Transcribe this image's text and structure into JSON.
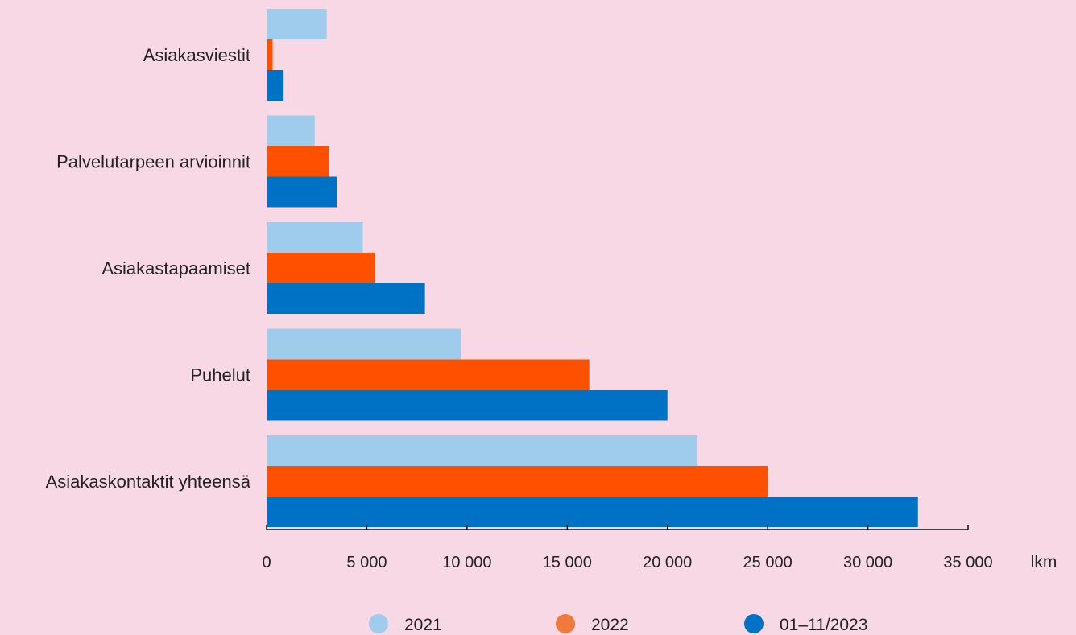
{
  "chart_data": {
    "type": "bar",
    "orientation": "horizontal",
    "title": "",
    "xlabel": "",
    "ylabel": "",
    "x_unit_label": "lkm",
    "categories": [
      "Asiakasviestit",
      "Palvelutarpeen arvioinnit",
      "Asiakastapaamiset",
      "Puhelut",
      "Asiakaskontaktit yhteensä"
    ],
    "series": [
      {
        "name": "2021",
        "color": "#9fcbec",
        "values": [
          3000,
          2400,
          4800,
          9700,
          21500
        ]
      },
      {
        "name": "2022",
        "color": "#ff5000",
        "legend_color": "#f07a3c",
        "values": [
          300,
          3100,
          5400,
          16100,
          25000
        ]
      },
      {
        "name": "01–11/2023",
        "color": "#0072c6",
        "values": [
          850,
          3500,
          7900,
          20000,
          32500
        ]
      }
    ],
    "xlim": [
      0,
      35000
    ],
    "xticks": [
      0,
      5000,
      10000,
      15000,
      20000,
      25000,
      30000,
      35000
    ],
    "xtick_labels": [
      "0",
      "5 000",
      "10 000",
      "15 000",
      "20 000",
      "25 000",
      "30 000",
      "35 000"
    ],
    "grid": false,
    "legend_position": "bottom-center"
  }
}
